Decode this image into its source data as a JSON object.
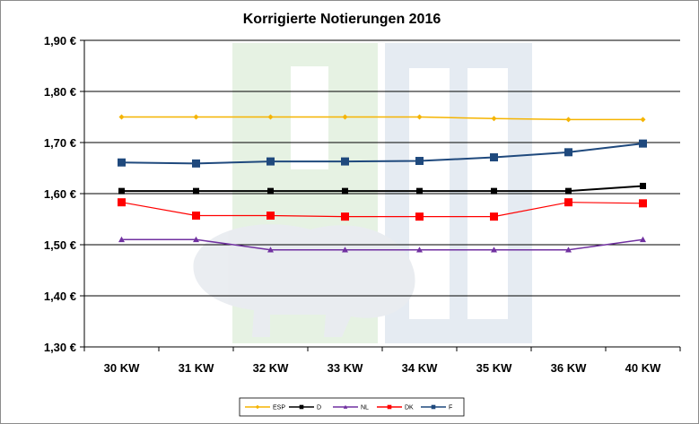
{
  "chart_data": {
    "type": "line",
    "title": "Korrigierte Notierungen 2016",
    "xlabel": "",
    "ylabel": "",
    "categories": [
      "30 KW",
      "31 KW",
      "32 KW",
      "33 KW",
      "34 KW",
      "35 KW",
      "36 KW",
      "40 KW"
    ],
    "ylim": [
      1.3,
      1.9
    ],
    "yticks": [
      "1,30 €",
      "1,40 €",
      "1,50 €",
      "1,60 €",
      "1,70 €",
      "1,80 €",
      "1,90 €"
    ],
    "grid": "horizontal",
    "legend_position": "bottom",
    "series": [
      {
        "name": "ESP",
        "color": "#f5b400",
        "marker": "diamond",
        "values": [
          1.75,
          1.75,
          1.75,
          1.75,
          1.75,
          1.747,
          1.745,
          1.745
        ]
      },
      {
        "name": "D",
        "color": "#000000",
        "marker": "square",
        "values": [
          1.605,
          1.605,
          1.605,
          1.605,
          1.605,
          1.605,
          1.605,
          1.615
        ]
      },
      {
        "name": "NL",
        "color": "#7030a0",
        "marker": "triangle",
        "values": [
          1.51,
          1.51,
          1.49,
          1.49,
          1.49,
          1.49,
          1.49,
          1.51
        ]
      },
      {
        "name": "DK",
        "color": "#ff0000",
        "marker": "square",
        "values": [
          1.583,
          1.557,
          1.557,
          1.555,
          1.555,
          1.555,
          1.583,
          1.581
        ]
      },
      {
        "name": "F",
        "color": "#1f497d",
        "marker": "square",
        "values": [
          1.661,
          1.659,
          1.663,
          1.663,
          1.664,
          1.671,
          1.681,
          1.698
        ]
      }
    ]
  }
}
